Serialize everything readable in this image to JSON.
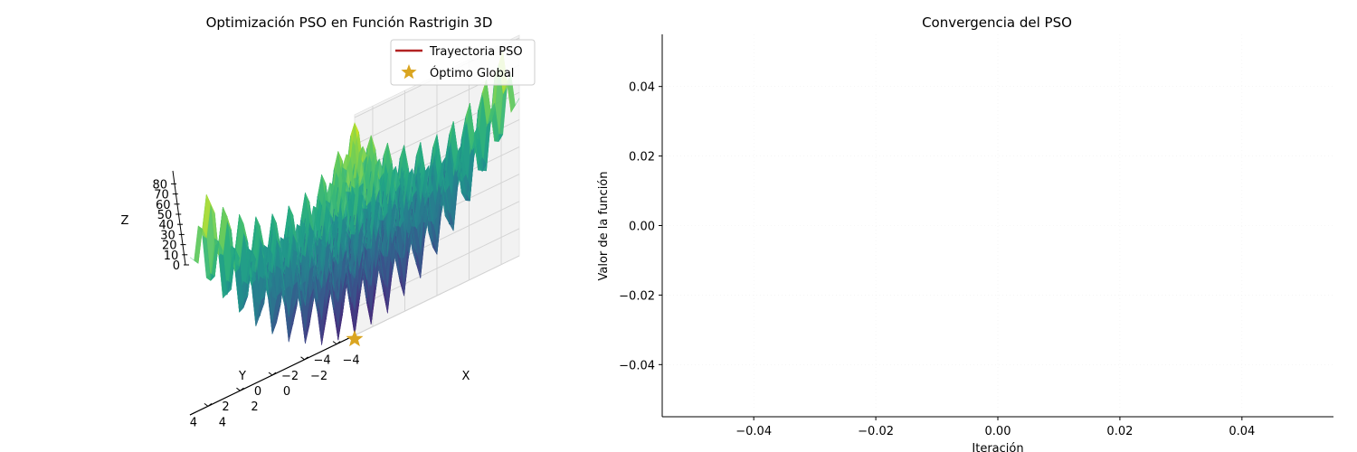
{
  "chart_data": [
    {
      "type": "surface3d",
      "title": "Optimización PSO en Función Rastrigin 3D",
      "xlabel": "X",
      "ylabel": "Y",
      "zlabel": "Z",
      "xlim": [
        -5.12,
        5.12
      ],
      "ylim": [
        -5.12,
        5.12
      ],
      "zlim": [
        0,
        81
      ],
      "x_ticks": [
        "−4",
        "−2",
        "0",
        "2",
        "4"
      ],
      "y_ticks": [
        "−4",
        "−2",
        "0",
        "2",
        "4"
      ],
      "z_ticks": [
        "0",
        "10",
        "20",
        "30",
        "40",
        "50",
        "60",
        "70",
        "80"
      ],
      "function": "rastrigin",
      "colormap": "viridis",
      "grid": true,
      "legend_position": "top-right",
      "legend": [
        {
          "label": "Trayectoria PSO",
          "marker": "line",
          "color": "#b22222"
        },
        {
          "label": "Óptimo Global",
          "marker": "star",
          "color": "#dAA520"
        }
      ],
      "global_optimum": {
        "x": 0,
        "y": 0,
        "z": 0
      },
      "trajectory": []
    },
    {
      "type": "line",
      "title": "Convergencia del PSO",
      "xlabel": "Iteración",
      "ylabel": "Valor de la función",
      "xlim": [
        -0.055,
        0.055
      ],
      "ylim": [
        -0.055,
        0.055
      ],
      "x_ticks": [
        "−0.04",
        "−0.02",
        "0.00",
        "0.02",
        "0.04"
      ],
      "x_tick_values": [
        -0.04,
        -0.02,
        0.0,
        0.02,
        0.04
      ],
      "y_ticks": [
        "0.04",
        "0.02",
        "0.00",
        "−0.02",
        "−0.04"
      ],
      "y_tick_values": [
        0.04,
        0.02,
        0.0,
        -0.02,
        -0.04
      ],
      "grid": true,
      "series": []
    }
  ]
}
